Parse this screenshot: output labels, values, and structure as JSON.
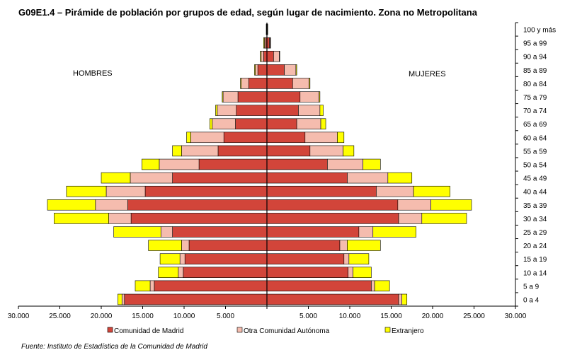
{
  "title": "G09E1.4 – Pirámide de población por grupos de edad, según lugar de nacimiento. Zona no Metropolitana",
  "source": "Fuente: Instituto de Estadística de la Comunidad de Madrid",
  "chart_data": {
    "type": "bar",
    "orientation": "horizontal-pyramid",
    "title": "G09E1.4 – Pirámide de población por grupos de edad, según lugar de nacimiento. Zona no Metropolitana",
    "left_label": "HOMBRES",
    "right_label": "MUJERES",
    "categories": [
      "100 y más",
      "95 a 99",
      "90 a 94",
      "85 a 89",
      "80 a 84",
      "75 a 79",
      "70 a 74",
      "65 a 69",
      "60 a 64",
      "55 a 59",
      "50 a 54",
      "45 a 49",
      "40 a 44",
      "35 a 39",
      "30 a 34",
      "25 a 29",
      "20 a 24",
      "15 a 19",
      "10 a 14",
      "5 a 9",
      "0 a 4"
    ],
    "xlim": [
      -30000,
      30000
    ],
    "x_ticks": [
      -30000,
      -25000,
      -20000,
      -15000,
      -10000,
      -5000,
      0,
      5000,
      10000,
      15000,
      20000,
      25000,
      30000
    ],
    "x_tick_labels": [
      "30.000",
      "25.000",
      "20.000",
      "15.000",
      "10.000",
      "5.000",
      "",
      "5.000",
      "10.000",
      "15.000",
      "20.000",
      "25.000",
      "30.000"
    ],
    "legend_position": "bottom",
    "grid": false,
    "series": [
      {
        "name": "Comunidad de Madrid",
        "color": "#d2453a",
        "men": [
          50,
          150,
          400,
          1100,
          2200,
          3500,
          3700,
          3800,
          5200,
          5900,
          8200,
          11400,
          14700,
          16800,
          16400,
          11400,
          9400,
          9900,
          10100,
          13600,
          17200
        ],
        "women": [
          50,
          300,
          800,
          2100,
          3100,
          4000,
          3800,
          3600,
          4600,
          5200,
          7300,
          9700,
          13200,
          15800,
          15900,
          11100,
          8800,
          9300,
          9800,
          12600,
          15900
        ]
      },
      {
        "name": "Otra Comunidad Autónoma",
        "color": "#f5bcae",
        "men": [
          20,
          150,
          300,
          300,
          900,
          1800,
          2300,
          2800,
          4000,
          4400,
          4800,
          5100,
          4700,
          3900,
          2700,
          1400,
          900,
          600,
          600,
          500,
          300
        ],
        "women": [
          20,
          100,
          700,
          1400,
          2000,
          2300,
          2600,
          2900,
          3900,
          4000,
          4300,
          4900,
          4500,
          4000,
          2800,
          1700,
          900,
          600,
          600,
          400,
          400
        ]
      },
      {
        "name": "Extranjero",
        "color": "#ffff00",
        "men": [
          10,
          100,
          100,
          100,
          100,
          100,
          200,
          300,
          500,
          1100,
          2100,
          3500,
          4800,
          5800,
          6600,
          5700,
          4000,
          2400,
          2400,
          1800,
          500
        ],
        "women": [
          10,
          50,
          50,
          100,
          100,
          100,
          400,
          600,
          800,
          1300,
          2100,
          2900,
          4400,
          4900,
          5400,
          5200,
          4000,
          2400,
          2200,
          1800,
          600
        ]
      }
    ]
  }
}
